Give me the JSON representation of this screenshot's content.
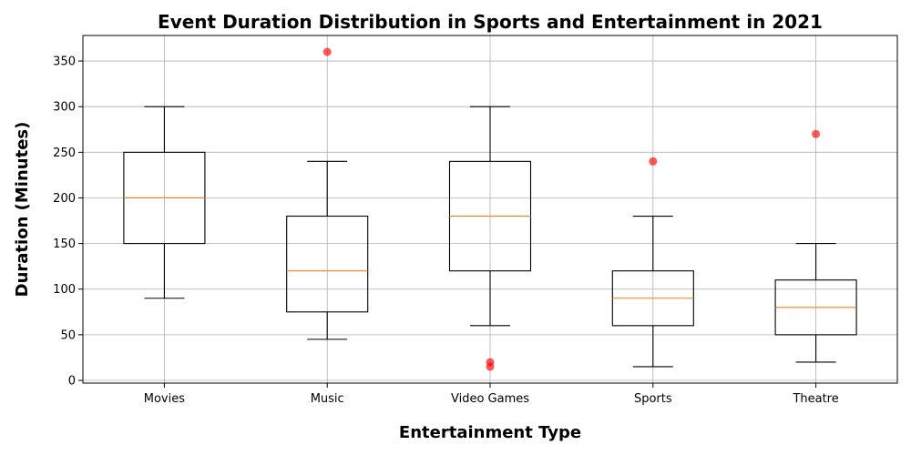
{
  "chart_data": {
    "type": "box",
    "title": "Event Duration Distribution in Sports and Entertainment in 2021",
    "xlabel": "Entertainment Type",
    "ylabel": "Duration (Minutes)",
    "ylim": [
      -3,
      378
    ],
    "yticks": [
      0,
      50,
      100,
      150,
      200,
      250,
      300,
      350
    ],
    "grid": true,
    "categories": [
      "Movies",
      "Music",
      "Video Games",
      "Sports",
      "Theatre"
    ],
    "boxes": [
      {
        "category": "Movies",
        "whisker_low": 90,
        "q1": 150,
        "median": 200,
        "q3": 250,
        "whisker_high": 300,
        "outliers": []
      },
      {
        "category": "Music",
        "whisker_low": 45,
        "q1": 75,
        "median": 120,
        "q3": 180,
        "whisker_high": 240,
        "outliers": [
          360
        ]
      },
      {
        "category": "Video Games",
        "whisker_low": 60,
        "q1": 120,
        "median": 180,
        "q3": 240,
        "whisker_high": 300,
        "outliers": [
          20,
          15
        ]
      },
      {
        "category": "Sports",
        "whisker_low": 15,
        "q1": 60,
        "median": 90,
        "q3": 120,
        "whisker_high": 180,
        "outliers": [
          240
        ]
      },
      {
        "category": "Theatre",
        "whisker_low": 20,
        "q1": 50,
        "median": 80,
        "q3": 110,
        "whisker_high": 150,
        "outliers": [
          270
        ]
      }
    ],
    "colors": {
      "box": "#000000",
      "median": "#ff7f0e",
      "outlier": "#ff0000",
      "grid": "#b0b0b0"
    }
  }
}
